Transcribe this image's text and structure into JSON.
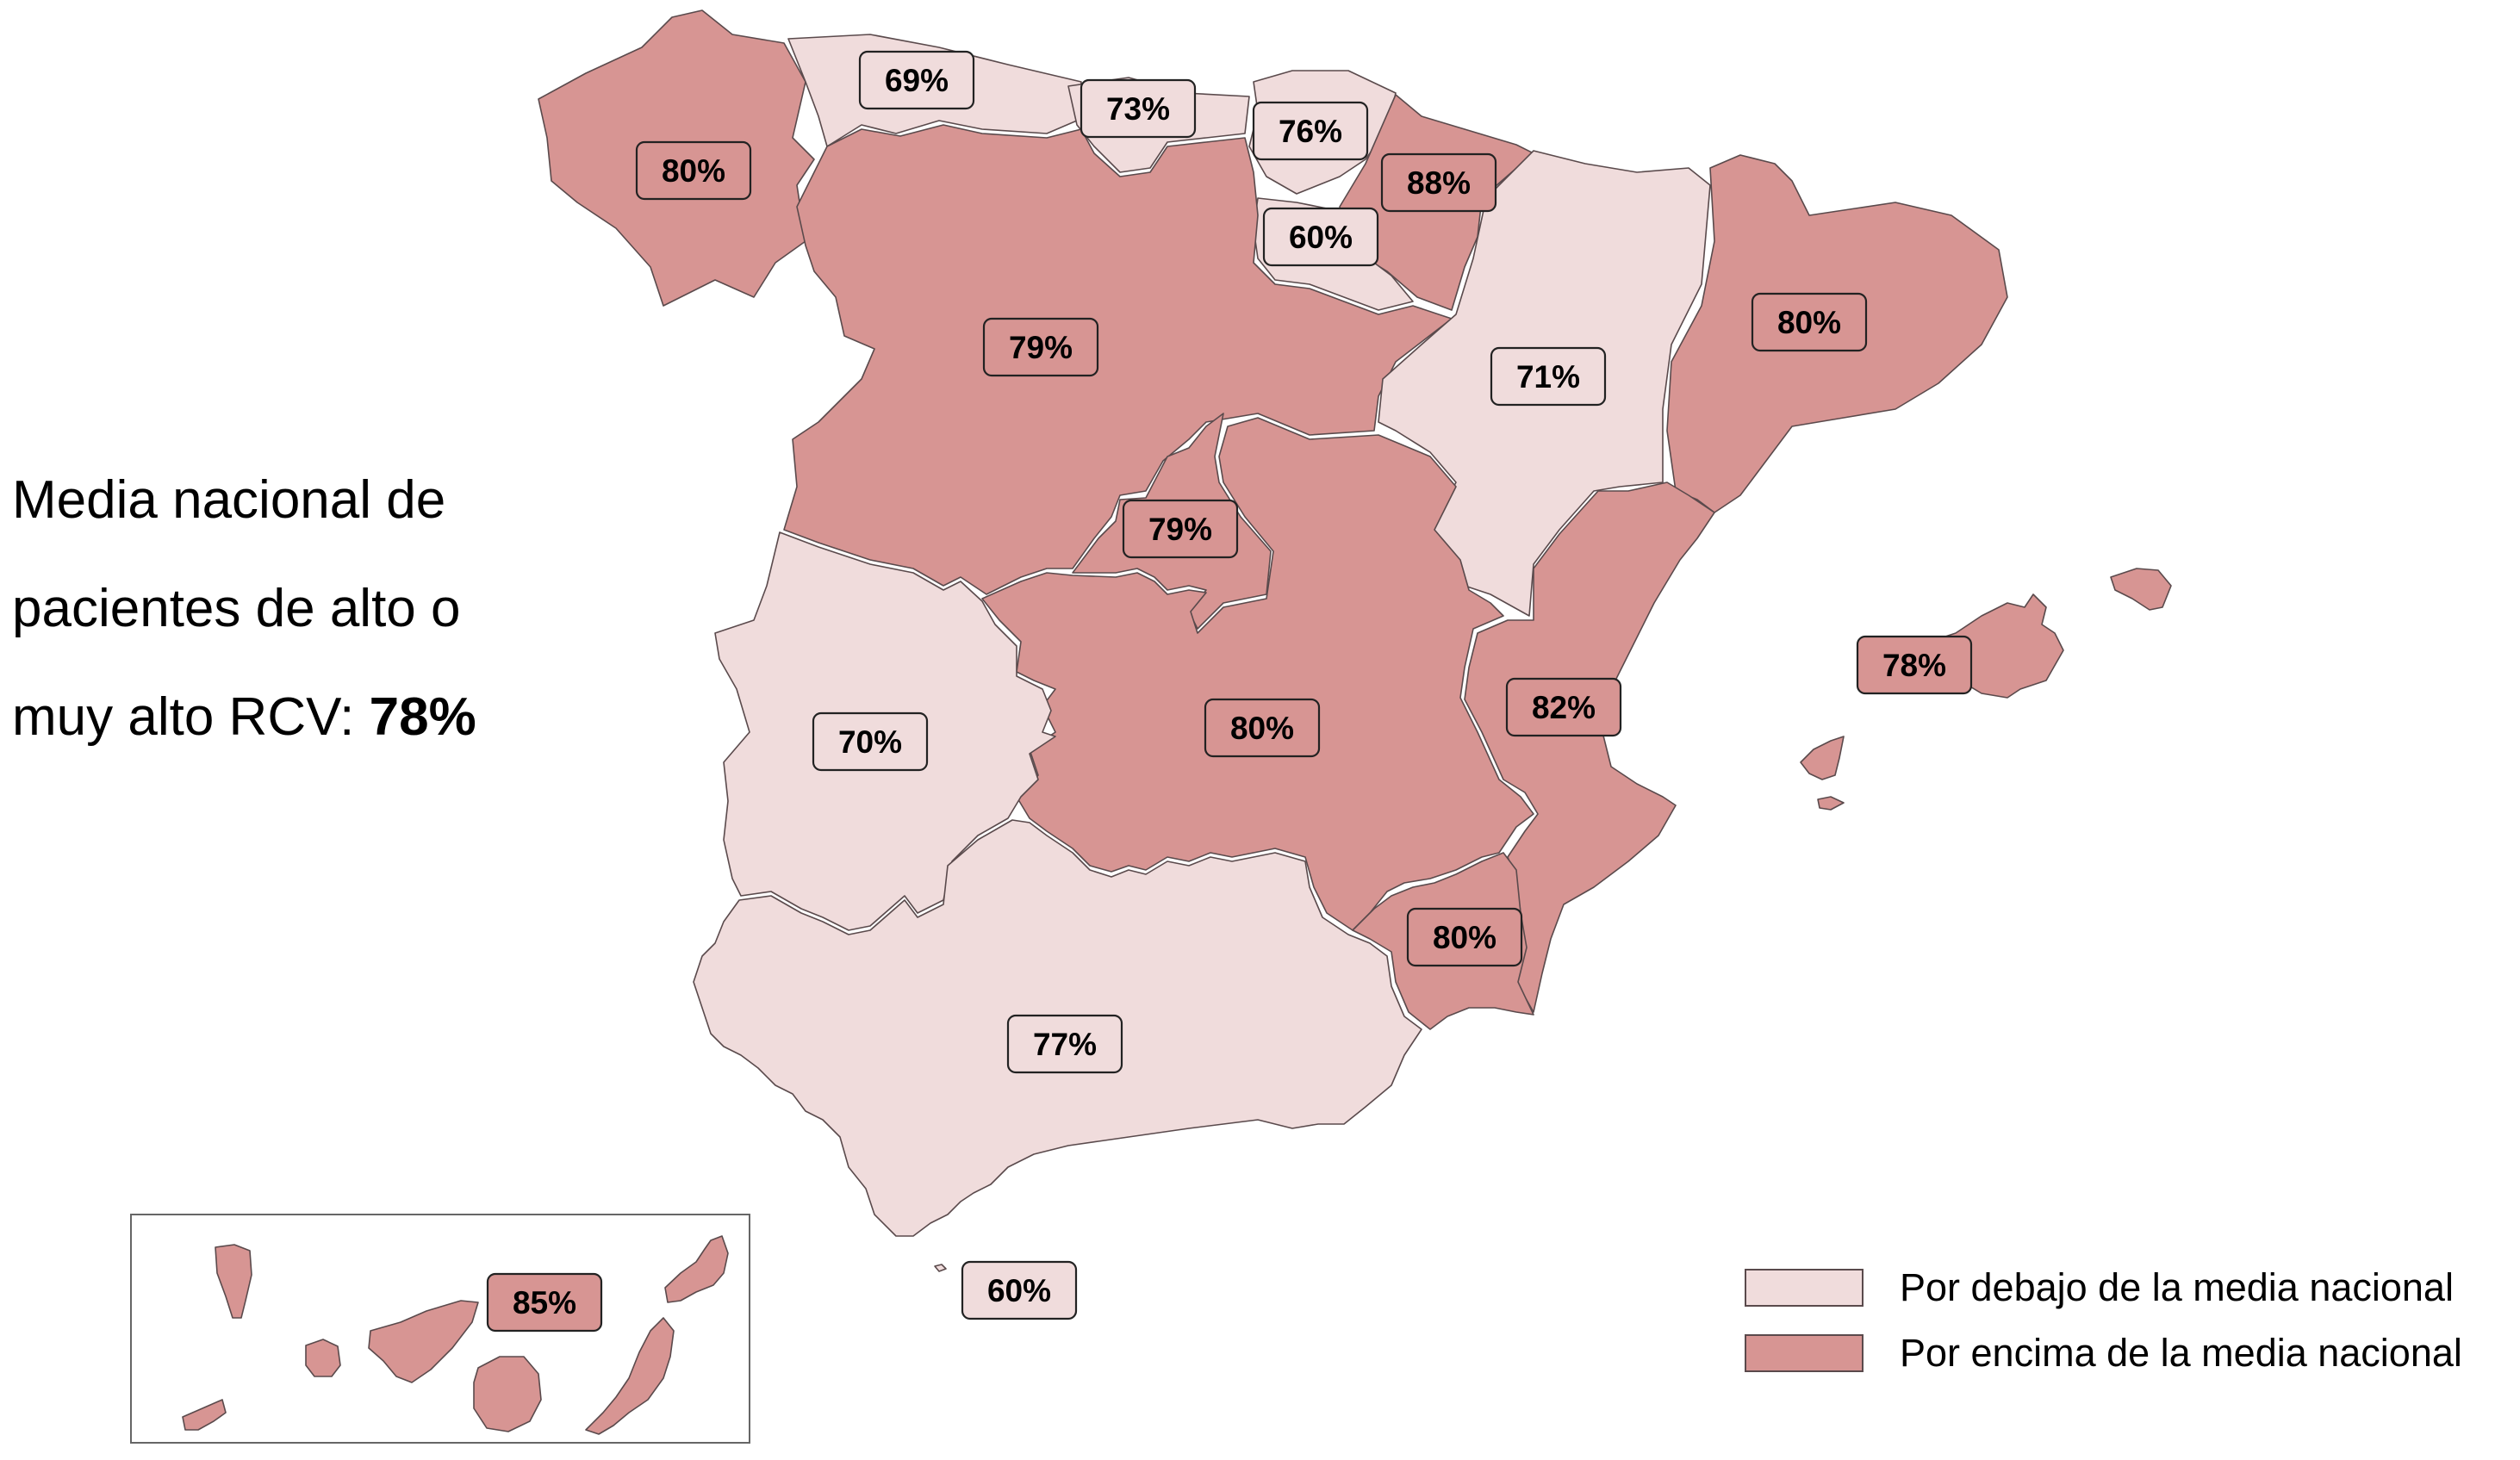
{
  "caption": {
    "text": "Media nacional de pacientes de alto o muy alto RCV:",
    "value": "78%"
  },
  "colors": {
    "below": "#f0dcdc",
    "above": "#d79593"
  },
  "legend": [
    {
      "key": "below",
      "label": "Por debajo de la media nacional"
    },
    {
      "key": "above",
      "label": "Por encima de la media nacional"
    }
  ],
  "regions": [
    {
      "id": "galicia",
      "value": "80%",
      "category": "above"
    },
    {
      "id": "asturias",
      "value": "69%",
      "category": "below"
    },
    {
      "id": "cantabria",
      "value": "73%",
      "category": "below"
    },
    {
      "id": "pais-vasco",
      "value": "76%",
      "category": "below"
    },
    {
      "id": "navarra",
      "value": "88%",
      "category": "above"
    },
    {
      "id": "la-rioja",
      "value": "60%",
      "category": "below"
    },
    {
      "id": "castilla-leon",
      "value": "79%",
      "category": "above"
    },
    {
      "id": "aragon",
      "value": "71%",
      "category": "below"
    },
    {
      "id": "cataluna",
      "value": "80%",
      "category": "above"
    },
    {
      "id": "madrid",
      "value": "79%",
      "category": "above"
    },
    {
      "id": "castilla-la-mancha",
      "value": "80%",
      "category": "above"
    },
    {
      "id": "comunitat-valenciana",
      "value": "82%",
      "category": "above"
    },
    {
      "id": "illes-balears",
      "value": "78%",
      "category": "above"
    },
    {
      "id": "extremadura",
      "value": "70%",
      "category": "below"
    },
    {
      "id": "region-murcia",
      "value": "80%",
      "category": "above"
    },
    {
      "id": "andalucia",
      "value": "77%",
      "category": "below"
    },
    {
      "id": "ceuta-melilla",
      "value": "60%",
      "category": "below"
    },
    {
      "id": "canarias",
      "value": "85%",
      "category": "above"
    }
  ]
}
